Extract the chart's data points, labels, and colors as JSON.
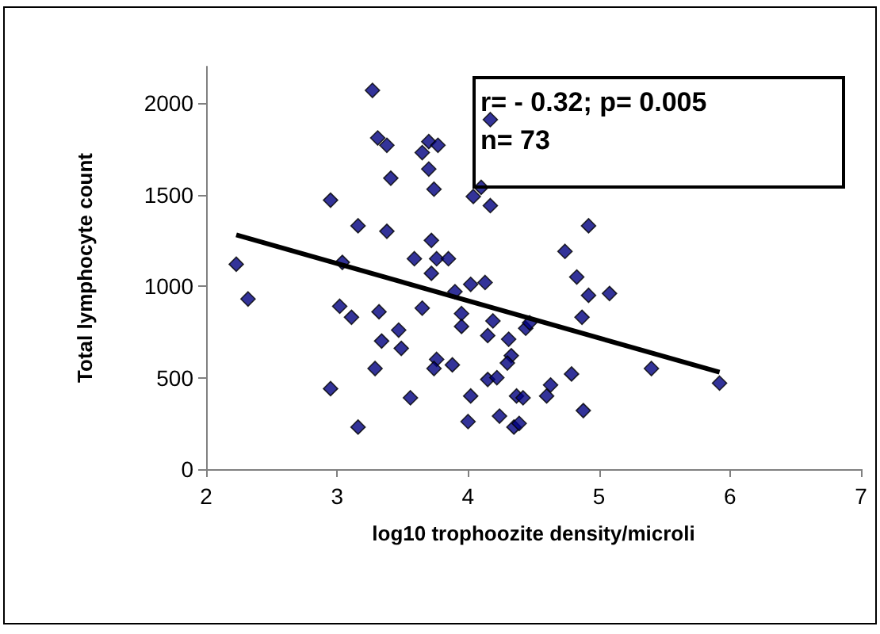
{
  "chart_data": {
    "type": "scatter",
    "xlabel": "log10 trophoozite density/microli",
    "ylabel": "Total lymphocyte count",
    "annotations": [
      "r= - 0.32; p= 0.005",
      "n= 73"
    ],
    "xlim": [
      2,
      7
    ],
    "xticks": [
      2,
      3,
      4,
      5,
      6,
      7
    ],
    "ylim": [
      0,
      2200
    ],
    "yticks": [
      0,
      500,
      1000,
      1500,
      2000
    ],
    "grid": false,
    "marker": "diamond",
    "series": [
      {
        "color": "#000080",
        "x": [
          2.23,
          2.32,
          2.95,
          2.95,
          3.04,
          3.02,
          3.11,
          3.16,
          3.16,
          3.27,
          3.31,
          3.38,
          3.41,
          3.38,
          3.32,
          3.34,
          3.29,
          3.47,
          3.49,
          3.56,
          3.59,
          3.65,
          3.7,
          3.77,
          3.7,
          3.74,
          3.72,
          3.76,
          3.85,
          3.72,
          3.65,
          3.9,
          3.76,
          3.74,
          3.88,
          3.95,
          3.95,
          4.02,
          4.13,
          4.04,
          4.1,
          4.17,
          4.17,
          4.02,
          4.0,
          4.15,
          4.19,
          4.15,
          4.22,
          4.24,
          4.31,
          4.33,
          4.3,
          4.37,
          4.35,
          4.42,
          4.39,
          4.44,
          4.47,
          4.6,
          4.63,
          4.79,
          4.88,
          4.87,
          4.92,
          5.08,
          4.83,
          4.74,
          4.92,
          5.4,
          5.92
        ],
        "values": [
          1120,
          930,
          1470,
          440,
          1130,
          890,
          830,
          230,
          1330,
          2070,
          1810,
          1770,
          1590,
          1300,
          860,
          700,
          550,
          760,
          660,
          390,
          1150,
          1730,
          1790,
          1770,
          1640,
          1530,
          1250,
          1150,
          1150,
          1070,
          880,
          970,
          600,
          550,
          570,
          850,
          780,
          1010,
          1020,
          1490,
          1540,
          1440,
          1910,
          400,
          260,
          730,
          810,
          490,
          500,
          290,
          710,
          620,
          580,
          400,
          230,
          390,
          250,
          770,
          800,
          400,
          460,
          520,
          320,
          830,
          950,
          960,
          1050,
          1190,
          1330,
          550,
          470
        ]
      },
      {
        "type": "line",
        "color": "#000000",
        "marker": "none",
        "x": [
          2.23,
          5.92
        ],
        "values": [
          1280,
          530
        ]
      }
    ]
  }
}
